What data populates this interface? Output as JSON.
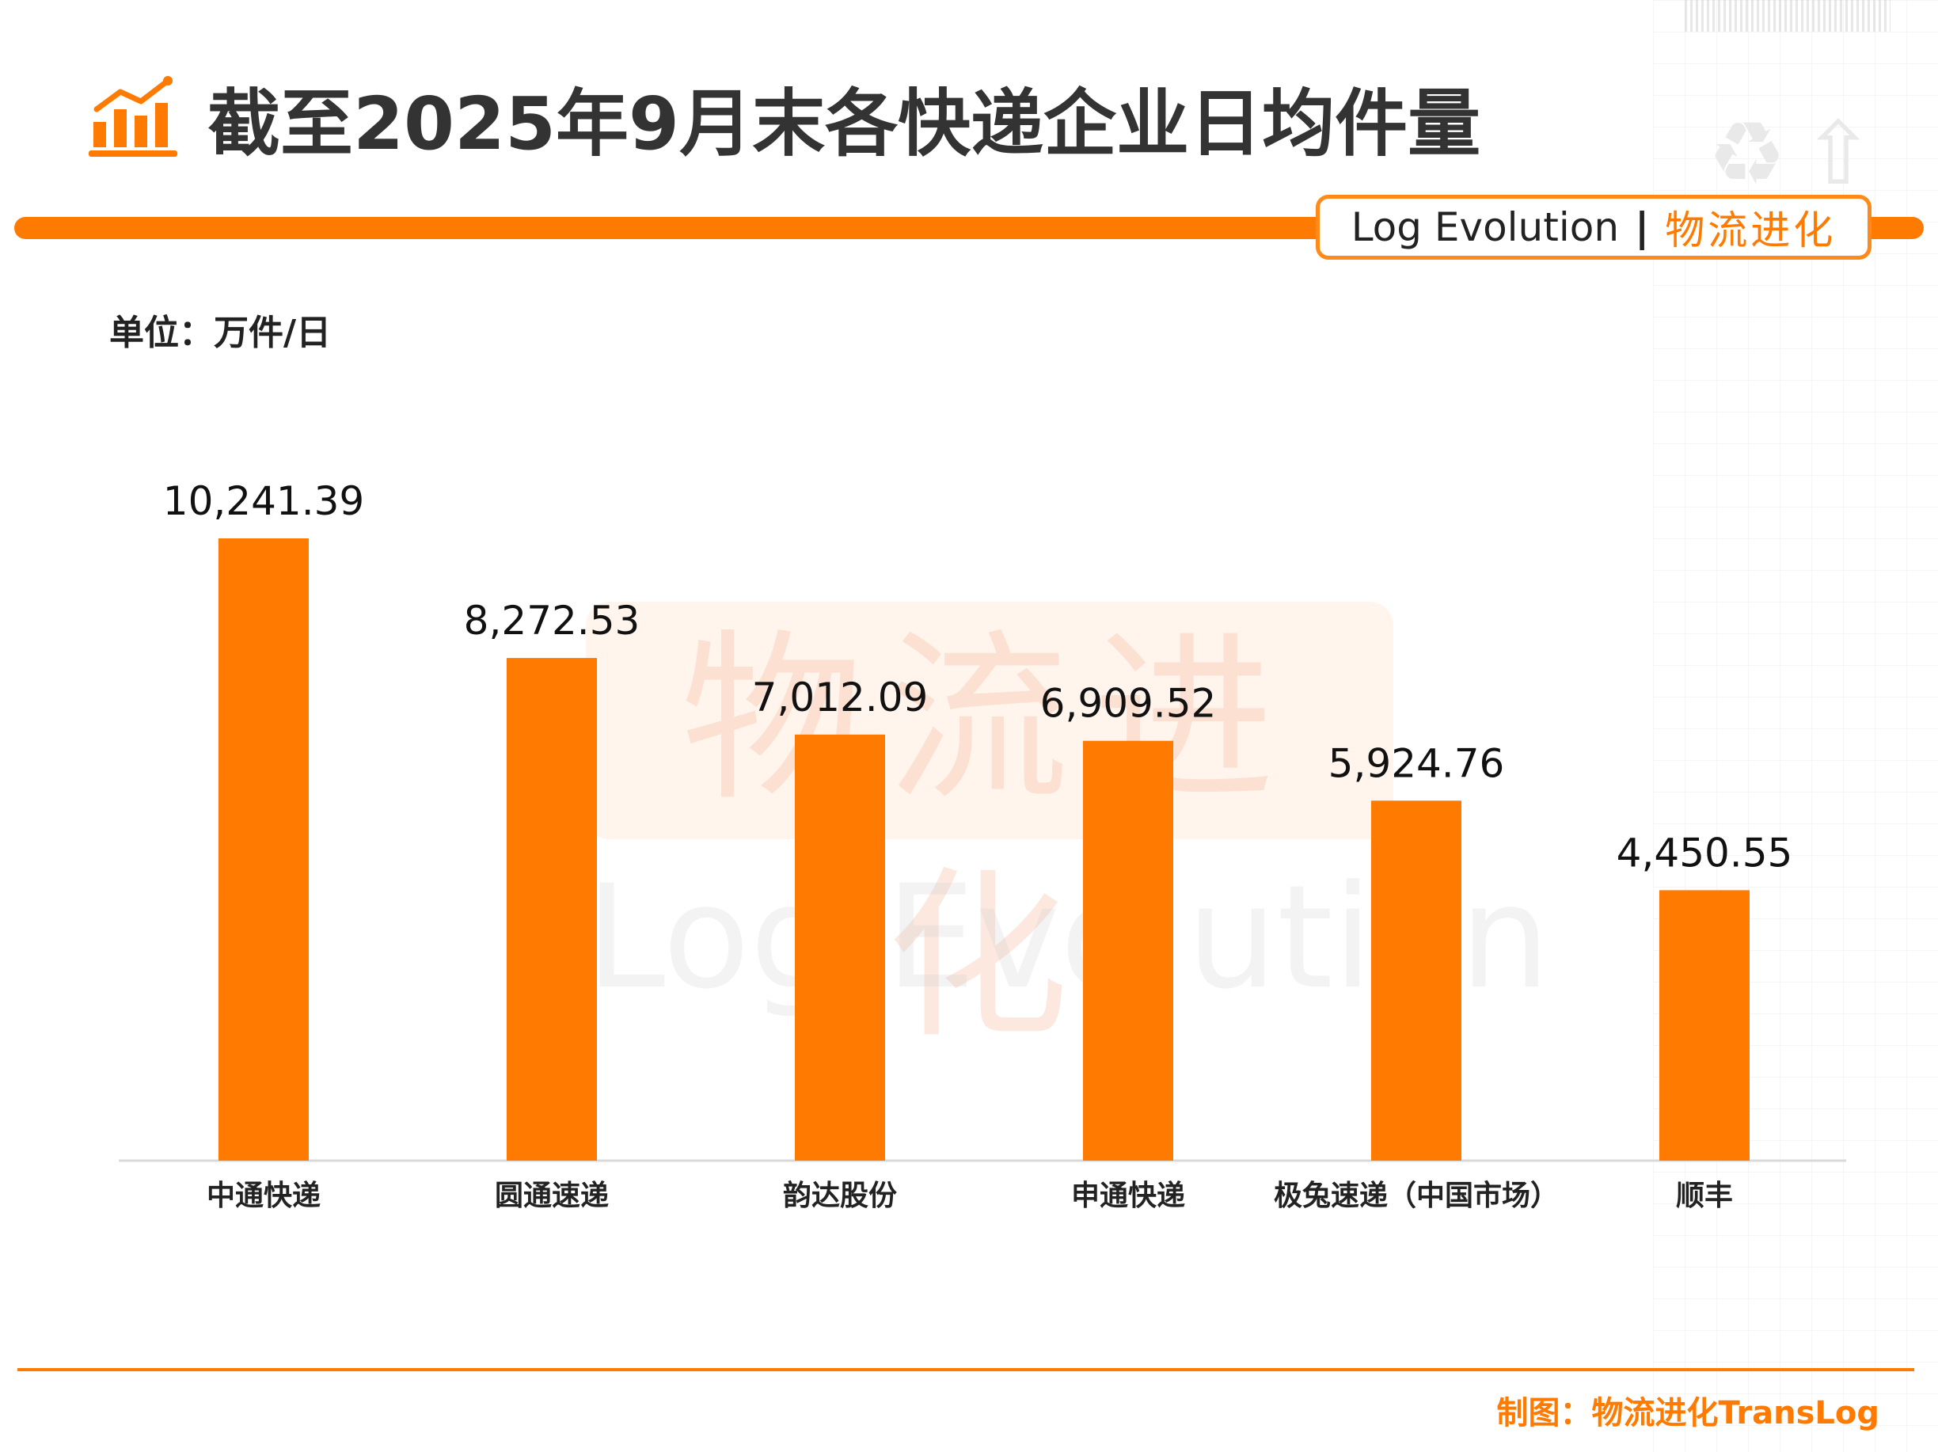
{
  "title": "截至2025年9月末各快递企业日均件量",
  "brand": {
    "en": "Log Evolution",
    "separator": "|",
    "cn": "物流进化"
  },
  "unit_label": "单位：万件/日",
  "watermark": {
    "cn": "物流进化",
    "en": "Log Evolution"
  },
  "credit": "制图：物流进化TransLog",
  "colors": {
    "bar": "#ff7a00",
    "accent": "#ff7a00",
    "title": "#333333"
  },
  "icons": [
    "bar-chart-trend-icon"
  ],
  "chart_data": {
    "type": "bar",
    "categories": [
      "中通快递",
      "圆通速递",
      "韵达股份",
      "申通快递",
      "极兔速递（中国市场）",
      "顺丰"
    ],
    "values": [
      10241.39,
      8272.53,
      7012.09,
      6909.52,
      5924.76,
      4450.55
    ],
    "data_labels": [
      "10,241.39",
      "8,272.53",
      "7,012.09",
      "6,909.52",
      "5,924.76",
      "4,450.55"
    ],
    "title": "截至2025年9月末各快递企业日均件量",
    "ylabel": "单位：万件/日",
    "ylim": [
      0,
      12000
    ],
    "grid": false,
    "legend": "none"
  }
}
